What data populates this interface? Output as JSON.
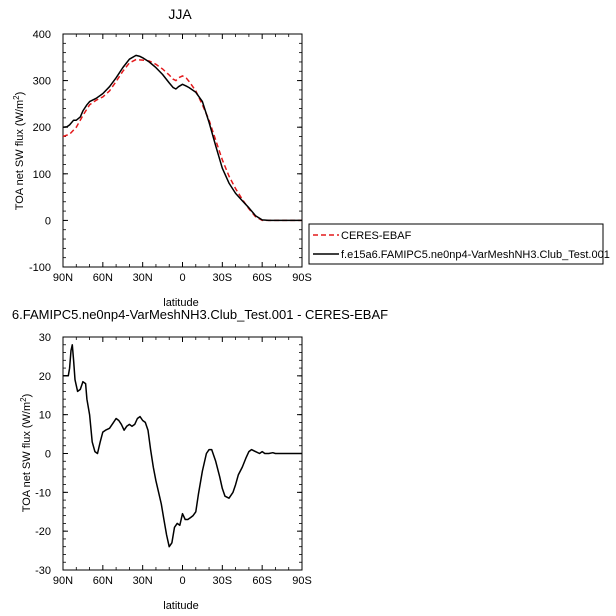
{
  "chart_data": [
    {
      "type": "line",
      "title": "JJA",
      "xlabel": "latitude",
      "ylabel": "TOA net SW flux (W/m",
      "ylabel_sup": "2",
      "ylabel_close": ")",
      "xlim": [
        90,
        -90
      ],
      "ylim": [
        -100,
        400
      ],
      "xticks": [
        90,
        60,
        30,
        0,
        -30,
        -60,
        -90
      ],
      "xtick_labels": [
        "90N",
        "60N",
        "30N",
        "0",
        "30S",
        "60S",
        "90S"
      ],
      "yticks": [
        -100,
        0,
        100,
        200,
        300,
        400
      ],
      "ytick_labels": [
        "-100",
        "0",
        "100",
        "200",
        "300",
        "400"
      ],
      "legend_position": "right",
      "series": [
        {
          "name": "CERES-EBAF",
          "color": "#e41a1c",
          "dash": "dashed",
          "x": [
            90,
            85,
            80,
            75,
            70,
            65,
            60,
            55,
            50,
            45,
            40,
            35,
            30,
            25,
            20,
            15,
            10,
            7,
            5,
            3,
            0,
            -3,
            -5,
            -10,
            -15,
            -20,
            -25,
            -30,
            -35,
            -40,
            -45,
            -50,
            -55,
            -60,
            -65,
            -70,
            -75,
            -80,
            -85,
            -90
          ],
          "y": [
            180,
            185,
            200,
            225,
            248,
            258,
            265,
            278,
            298,
            320,
            338,
            345,
            344,
            342,
            335,
            325,
            312,
            303,
            300,
            306,
            310,
            305,
            298,
            278,
            248,
            215,
            172,
            130,
            95,
            68,
            45,
            25,
            8,
            0,
            0,
            0,
            0,
            0,
            0,
            0
          ]
        },
        {
          "name": "f.e15a6.FAMIPC5.ne0np4-VarMeshNH3.Club_Test.001",
          "color": "#000000",
          "dash": "solid",
          "x": [
            90,
            87,
            85,
            82,
            80,
            77,
            75,
            72,
            70,
            65,
            60,
            55,
            50,
            45,
            40,
            35,
            32,
            30,
            25,
            20,
            15,
            10,
            7,
            5,
            3,
            0,
            -3,
            -5,
            -10,
            -15,
            -20,
            -25,
            -30,
            -35,
            -40,
            -45,
            -50,
            -55,
            -60,
            -65,
            -70,
            -75,
            -80,
            -85,
            -90
          ],
          "y": [
            200,
            201,
            205,
            215,
            215,
            222,
            235,
            248,
            255,
            262,
            272,
            287,
            306,
            328,
            346,
            354,
            352,
            349,
            340,
            328,
            313,
            295,
            285,
            282,
            287,
            292,
            288,
            285,
            275,
            255,
            210,
            160,
            112,
            80,
            58,
            42,
            27,
            10,
            1,
            0,
            0,
            0,
            0,
            0,
            0
          ]
        }
      ]
    },
    {
      "type": "line",
      "title": "6.FAMIPC5.ne0np4-VarMeshNH3.Club_Test.001 - CERES-EBAF",
      "xlabel": "latitude",
      "ylabel": "TOA net SW flux (W/m",
      "ylabel_sup": "2",
      "ylabel_close": ")",
      "xlim": [
        90,
        -90
      ],
      "ylim": [
        -30,
        30
      ],
      "xticks": [
        90,
        60,
        30,
        0,
        -30,
        -60,
        -90
      ],
      "xtick_labels": [
        "90N",
        "60N",
        "30N",
        "0",
        "30S",
        "60S",
        "90S"
      ],
      "yticks": [
        -30,
        -20,
        -10,
        0,
        10,
        20,
        30
      ],
      "ytick_labels": [
        "-30",
        "-20",
        "-10",
        "0",
        "10",
        "20",
        "30"
      ],
      "series": [
        {
          "color": "#000000",
          "dash": "solid",
          "x": [
            90,
            88,
            86,
            85,
            84,
            83,
            82,
            81,
            79,
            77,
            75,
            73,
            72,
            70,
            68,
            66,
            64,
            62,
            60,
            58,
            55,
            52,
            50,
            48,
            46,
            44,
            42,
            40,
            38,
            36,
            34,
            32,
            30,
            28,
            26,
            24,
            22,
            20,
            18,
            16,
            14,
            12,
            10,
            8,
            6,
            4,
            2,
            0,
            -2,
            -4,
            -6,
            -8,
            -10,
            -12,
            -15,
            -18,
            -20,
            -22,
            -25,
            -28,
            -30,
            -32,
            -35,
            -38,
            -40,
            -42,
            -45,
            -48,
            -50,
            -52,
            -55,
            -58,
            -60,
            -62,
            -65,
            -68,
            -70,
            -75,
            -80,
            -85,
            -90
          ],
          "y": [
            20,
            20,
            20,
            22,
            26.5,
            28,
            24,
            19,
            16,
            16.5,
            18.5,
            18,
            14,
            10,
            3,
            0.5,
            0,
            3,
            5.5,
            6,
            6.5,
            8,
            9,
            8.5,
            7.5,
            6,
            7,
            7.5,
            7,
            7.5,
            9,
            9.5,
            8.5,
            8,
            6,
            1,
            -3.5,
            -7,
            -10,
            -13,
            -17,
            -21,
            -24,
            -23,
            -19,
            -18,
            -18.5,
            -15.5,
            -17,
            -17,
            -16.5,
            -16,
            -15,
            -10.5,
            -4.5,
            0,
            1,
            1,
            -2,
            -6,
            -9,
            -11,
            -11.5,
            -10,
            -8,
            -5.5,
            -3.5,
            -1,
            0.5,
            1,
            0.5,
            0,
            0.5,
            0,
            0,
            0.2,
            0,
            0,
            0,
            0,
            0
          ]
        }
      ]
    }
  ]
}
